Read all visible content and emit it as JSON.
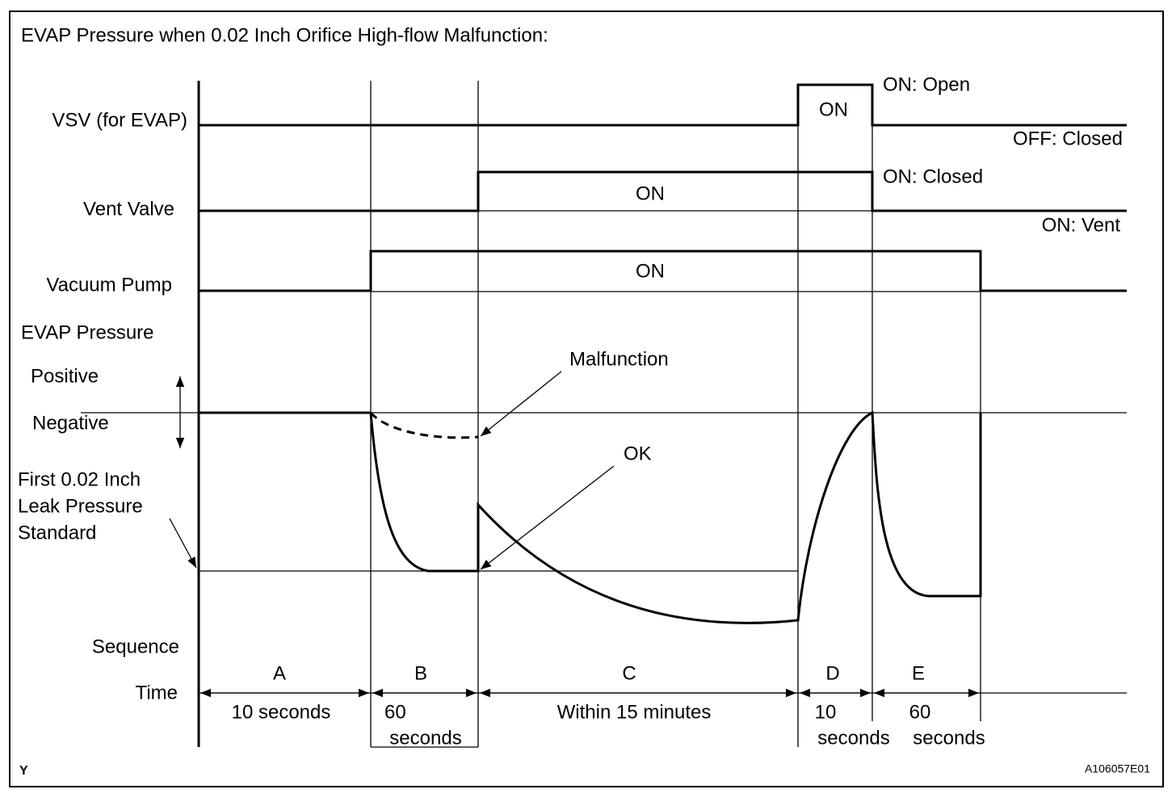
{
  "title": "EVAP Pressure when 0.02 Inch Orifice High-flow Malfunction:",
  "row_labels": {
    "vsv": "VSV (for EVAP)",
    "vent": "Vent Valve",
    "pump": "Vacuum Pump",
    "pressure": "EVAP Pressure",
    "positive": "Positive",
    "negative": "Negative",
    "standard": [
      "First 0.02 Inch",
      "Leak Pressure",
      "Standard"
    ],
    "sequence": "Sequence",
    "time": "Time"
  },
  "states": {
    "vsv_on": "ON",
    "vsv_on_desc": "ON: Open",
    "vsv_off_desc": "OFF: Closed",
    "vent_on_desc": "ON: Closed",
    "vent_on": "ON",
    "vent_off_desc": "ON: Vent",
    "pump_on": "ON"
  },
  "annotations": {
    "malfunction": "Malfunction",
    "ok": "OK"
  },
  "sequence": [
    "A",
    "B",
    "C",
    "D",
    "E"
  ],
  "times": [
    [
      "10 seconds"
    ],
    [
      "60",
      "seconds"
    ],
    [
      "Within 15 minutes"
    ],
    [
      "10",
      "seconds"
    ],
    [
      "60",
      "seconds"
    ]
  ],
  "footer": {
    "left": "Y",
    "right": "A106057E01"
  }
}
